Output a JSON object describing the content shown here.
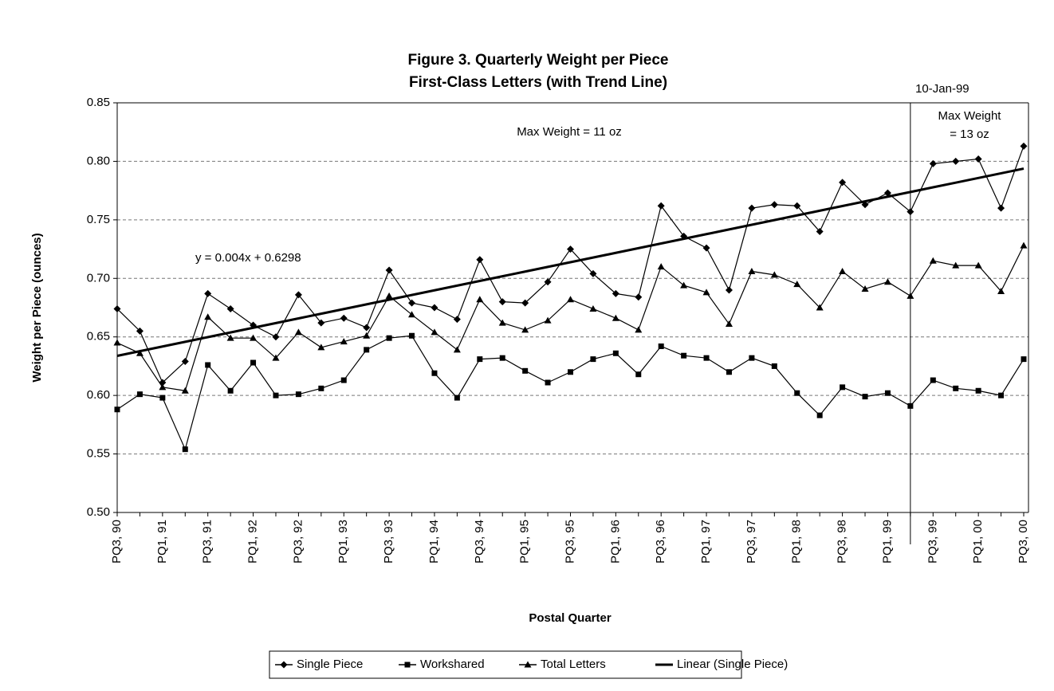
{
  "chart_data": {
    "type": "line",
    "title": [
      "Figure 3.  Quarterly Weight per Piece",
      "First-Class Letters (with Trend Line)"
    ],
    "x_label": "Postal Quarter",
    "y_label": "Weight per Piece (ounces)",
    "categories": [
      "PQ3, 90",
      null,
      "PQ1, 91",
      null,
      "PQ3, 91",
      null,
      "PQ1, 92",
      null,
      "PQ3, 92",
      null,
      "PQ1, 93",
      null,
      "PQ3, 93",
      null,
      "PQ1, 94",
      null,
      "PQ3, 94",
      null,
      "PQ1, 95",
      null,
      "PQ3, 95",
      null,
      "PQ1, 96",
      null,
      "PQ3, 96",
      null,
      "PQ1, 97",
      null,
      "PQ3, 97",
      null,
      "PQ1, 98",
      null,
      "PQ3, 98",
      null,
      "PQ1, 99",
      null,
      "PQ3, 99",
      null,
      "PQ1, 00",
      null,
      "PQ3, 00"
    ],
    "series": [
      {
        "name": "Single Piece",
        "color": "#000000",
        "marker": "diamond",
        "values": [
          0.674,
          0.655,
          0.611,
          0.629,
          0.687,
          0.674,
          0.66,
          0.65,
          0.686,
          0.662,
          0.666,
          0.658,
          0.707,
          0.679,
          0.675,
          0.665,
          0.716,
          0.68,
          0.679,
          0.697,
          0.725,
          0.704,
          0.687,
          0.684,
          0.762,
          0.736,
          0.726,
          0.69,
          0.76,
          0.763,
          0.762,
          0.74,
          0.782,
          0.763,
          0.773,
          0.757,
          0.798,
          0.8,
          0.802,
          0.76,
          0.813
        ]
      },
      {
        "name": "Workshared",
        "color": "#000000",
        "marker": "square",
        "values": [
          0.588,
          0.601,
          0.598,
          0.554,
          0.626,
          0.604,
          0.628,
          0.6,
          0.601,
          0.606,
          0.613,
          0.639,
          0.649,
          0.651,
          0.619,
          0.598,
          0.631,
          0.632,
          0.621,
          0.611,
          0.62,
          0.631,
          0.636,
          0.618,
          0.642,
          0.634,
          0.632,
          0.62,
          0.632,
          0.625,
          0.602,
          0.583,
          0.607,
          0.599,
          0.602,
          0.591,
          0.613,
          0.606,
          0.604,
          0.6,
          0.631
        ]
      },
      {
        "name": "Total Letters",
        "color": "#000000",
        "marker": "triangle",
        "values": [
          0.645,
          0.636,
          0.607,
          0.604,
          0.667,
          0.649,
          0.649,
          0.632,
          0.654,
          0.641,
          0.646,
          0.651,
          0.685,
          0.669,
          0.654,
          0.639,
          0.682,
          0.662,
          0.656,
          0.664,
          0.682,
          0.674,
          0.666,
          0.656,
          0.71,
          0.694,
          0.688,
          0.661,
          0.706,
          0.703,
          0.695,
          0.675,
          0.706,
          0.691,
          0.697,
          0.685,
          0.715,
          0.711,
          0.711,
          0.689,
          0.728
        ]
      },
      {
        "name": "Linear (Single Piece)",
        "color": "#000000",
        "marker": "none",
        "width": 3,
        "values": [
          0.6338,
          0.6378,
          0.6418,
          0.6458,
          0.6498,
          0.6538,
          0.6578,
          0.6618,
          0.6658,
          0.6698,
          0.6738,
          0.6778,
          0.6818,
          0.6858,
          0.6898,
          0.6938,
          0.6978,
          0.7018,
          0.7058,
          0.7098,
          0.7138,
          0.7178,
          0.7218,
          0.7258,
          0.7298,
          0.7338,
          0.7378,
          0.7418,
          0.7458,
          0.7498,
          0.7538,
          0.7578,
          0.7618,
          0.7658,
          0.7698,
          0.7738,
          0.7778,
          0.7818,
          0.7858,
          0.7898,
          0.7938
        ]
      }
    ],
    "ylim": [
      0.5,
      0.85
    ],
    "yticks": [
      {
        "value": 0.5,
        "label": "0.50"
      },
      {
        "value": 0.55,
        "label": "0.55"
      },
      {
        "value": 0.6,
        "label": "0.60"
      },
      {
        "value": 0.65,
        "label": "0.65"
      },
      {
        "value": 0.7,
        "label": "0.70"
      },
      {
        "value": 0.75,
        "label": "0.75"
      },
      {
        "value": 0.8,
        "label": "0.80"
      },
      {
        "value": 0.85,
        "label": "0.85"
      }
    ],
    "grid": true,
    "legend": "bottom",
    "annotations": {
      "max_weight_before": "Max Weight = 11 oz",
      "max_weight_after": [
        "Max Weight",
        "= 13 oz"
      ],
      "equation": "y = 0.004x + 0.6298"
    },
    "vline": {
      "label": "10-Jan-99",
      "at": 35
    }
  }
}
